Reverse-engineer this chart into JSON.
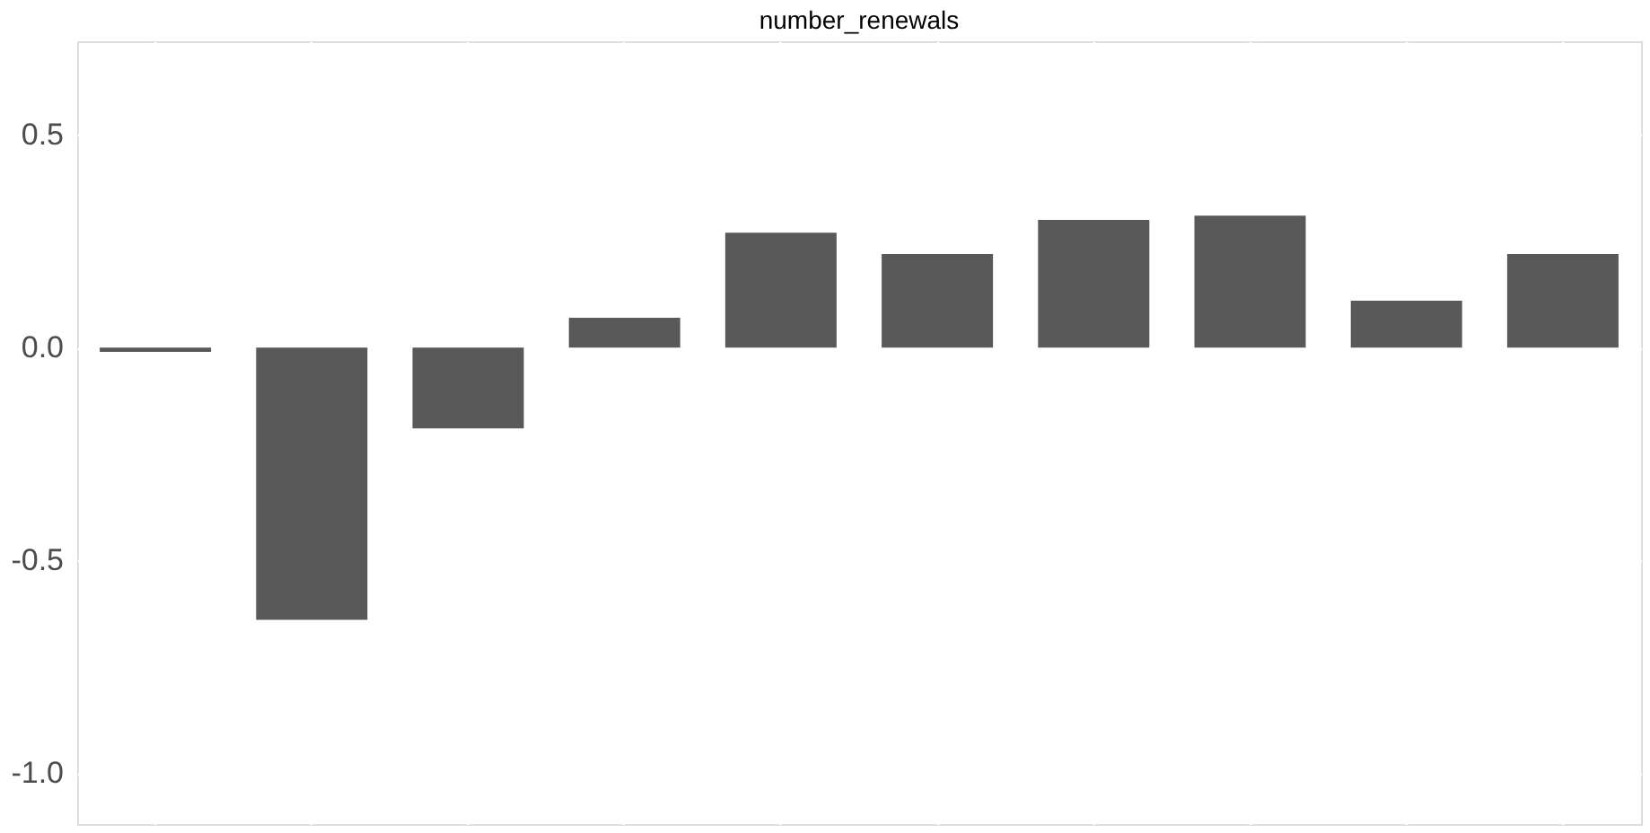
{
  "chart_data": {
    "type": "bar",
    "title": "number_renewals",
    "categories": [
      null,
      null,
      null,
      null,
      null,
      null,
      null,
      null,
      null,
      null
    ],
    "values": [
      -0.01,
      -0.64,
      -0.19,
      0.07,
      0.27,
      0.22,
      0.3,
      0.31,
      0.11,
      0.22
    ],
    "color": "#595959",
    "ylim": [
      -1.12,
      0.72
    ],
    "yticks": [
      {
        "value": -1.0,
        "label": "-1.0"
      },
      {
        "value": -0.5,
        "label": "-0.5"
      },
      {
        "value": 0,
        "label": "0.0"
      },
      0.5
    ],
    "grid": true,
    "tick_labels": "y"
  }
}
